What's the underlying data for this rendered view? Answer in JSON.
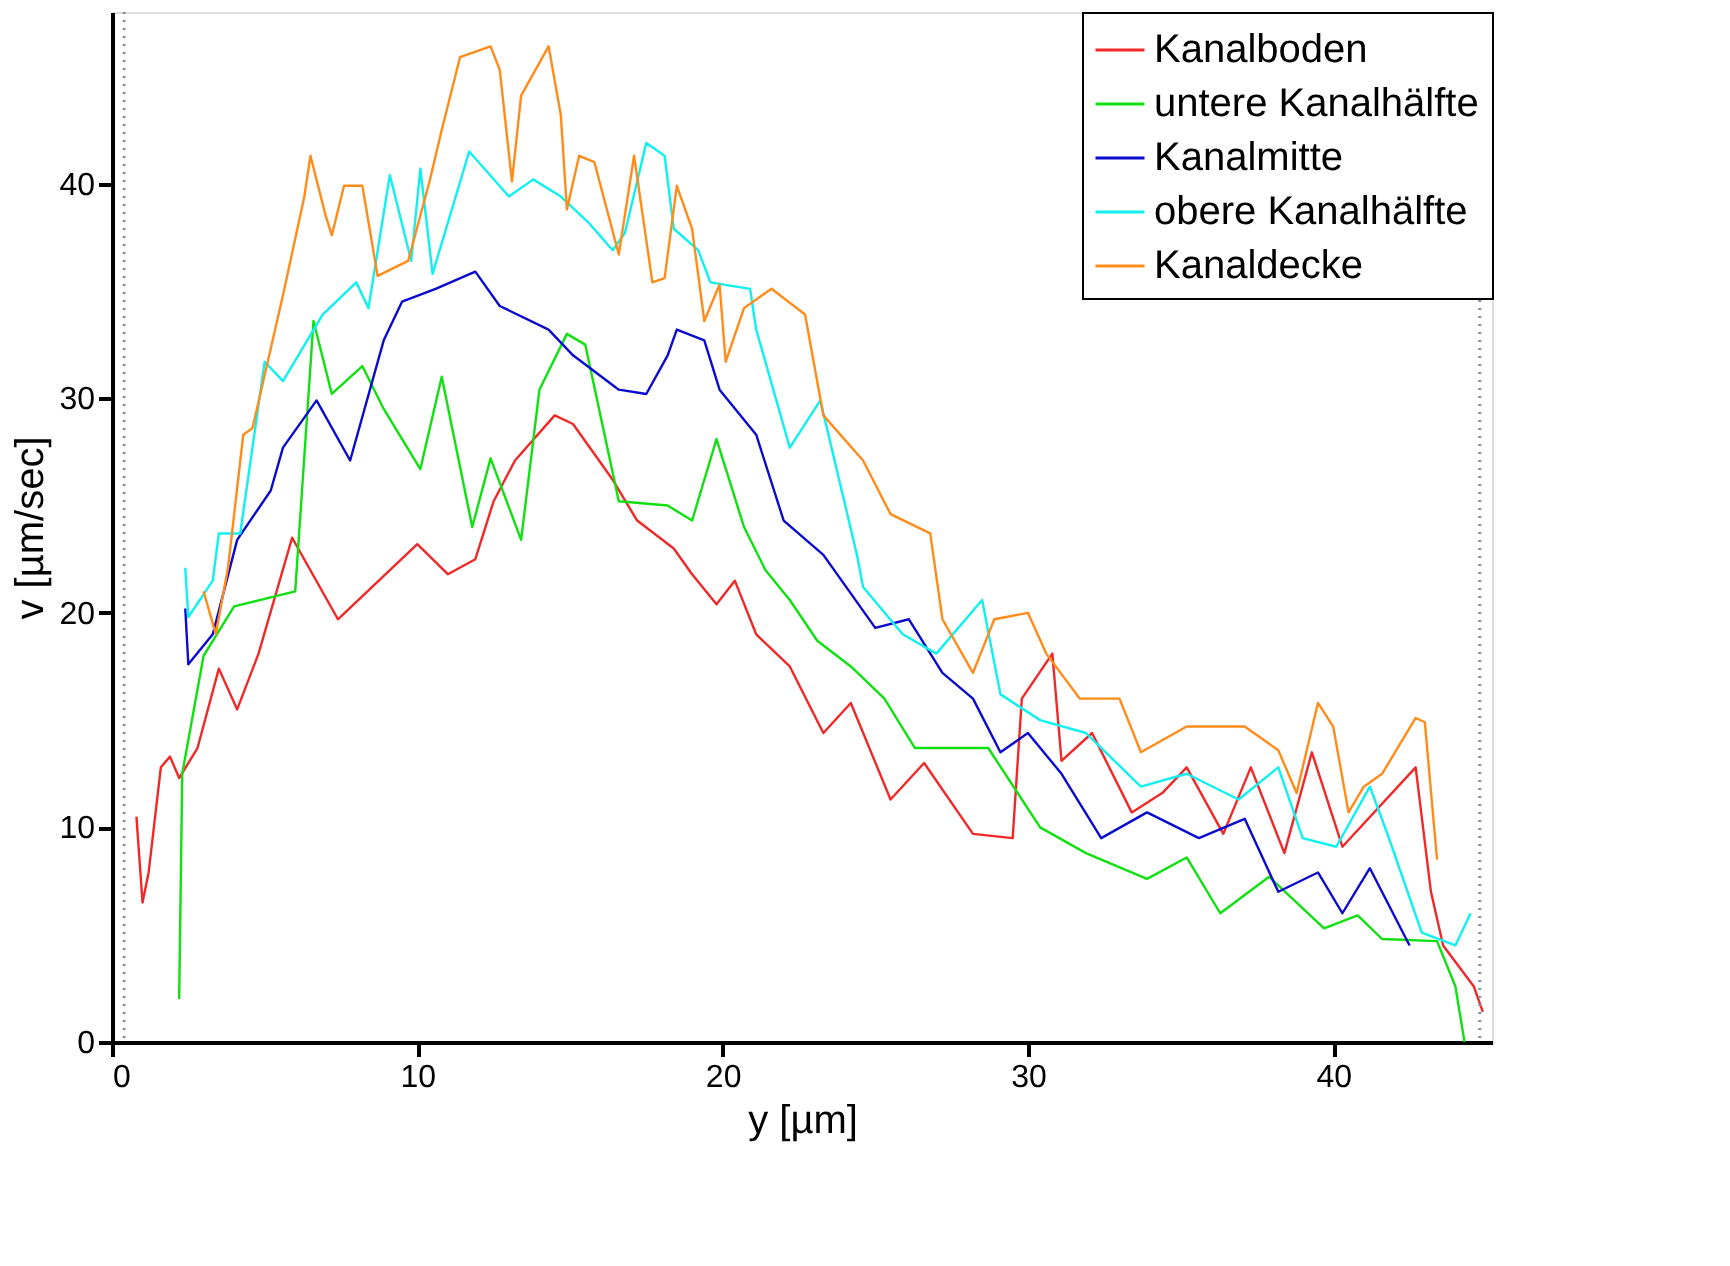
{
  "chart_data": {
    "type": "line",
    "xlabel": "y [µm]",
    "ylabel": "v [µm/sec]",
    "xlim": [
      0,
      45.2
    ],
    "ylim": [
      0,
      48
    ],
    "xticks": [
      0,
      10,
      20,
      30,
      40
    ],
    "yticks": [
      0,
      10,
      20,
      30,
      40
    ],
    "grid": false,
    "legend": "top right",
    "marker": "none",
    "line_style": "solid",
    "ref_lines": [
      {
        "axis": "x",
        "value": 0.4,
        "label": null,
        "color": "#8090a8",
        "line_style": "dotted"
      },
      {
        "axis": "x",
        "value": 44.8,
        "label": null,
        "color": "#8090a8",
        "line_style": "dotted"
      }
    ],
    "series": [
      {
        "name": "Kanalboden",
        "color": "#f02828",
        "x": [
          0.8,
          1,
          1.2,
          1.6,
          1.9,
          2.2,
          2.8,
          3.5,
          4.1,
          4.8,
          5.9,
          7.4,
          10,
          11,
          11.9,
          12.5,
          13.2,
          14.5,
          15.1,
          16.4,
          17.2,
          18.4,
          19,
          19.8,
          20.4,
          21.1,
          22.2,
          23.3,
          24.2,
          25.5,
          26.6,
          28.2,
          29.5,
          29.8,
          30.8,
          31.1,
          32.1,
          33.4,
          34.4,
          35.2,
          36.4,
          37.3,
          38.4,
          39.3,
          40.3,
          42.7,
          43.2,
          43.6,
          44.6,
          44.9
        ],
        "values": [
          10.5,
          6.5,
          7.9,
          12.8,
          13.3,
          12.3,
          13.7,
          17.4,
          15.5,
          18.1,
          23.5,
          19.7,
          23.2,
          21.8,
          22.5,
          25.2,
          27.1,
          29.2,
          28.8,
          26.2,
          24.3,
          23,
          21.8,
          20.4,
          21.5,
          19,
          17.5,
          14.4,
          15.8,
          11.3,
          13,
          9.7,
          9.5,
          16,
          18.1,
          13.1,
          14.4,
          10.7,
          11.6,
          12.8,
          9.7,
          12.8,
          8.8,
          13.5,
          9.1,
          12.8,
          7,
          4.5,
          2.6,
          1.4
        ]
      },
      {
        "name": "untere Kanalhälfte",
        "color": "#10e010",
        "x": [
          2.2,
          2.3,
          3,
          4,
          6,
          6.6,
          7.2,
          8.2,
          8.9,
          10.1,
          10.8,
          11.8,
          12.4,
          13.4,
          14,
          14.9,
          15.5,
          16.6,
          18.2,
          19,
          19.8,
          20.7,
          21.4,
          22.2,
          23.1,
          24.2,
          25.3,
          26.3,
          28.7,
          30.4,
          31.9,
          33.9,
          35.2,
          36.3,
          37.9,
          39.7,
          40.8,
          41.6,
          43.4,
          44,
          44.3
        ],
        "values": [
          2,
          12.5,
          18,
          20.3,
          21,
          33.6,
          30.2,
          31.5,
          29.5,
          26.7,
          31,
          24,
          27.2,
          23.4,
          30.4,
          33,
          32.5,
          25.2,
          25,
          24.3,
          28.1,
          24,
          22,
          20.6,
          18.7,
          17.5,
          16,
          13.7,
          13.7,
          10,
          8.8,
          7.6,
          8.6,
          6,
          7.7,
          5.3,
          5.9,
          4.8,
          4.7,
          2.6,
          0
        ]
      },
      {
        "name": "Kanalmitte",
        "color": "#0a0ad0",
        "x": [
          2.4,
          2.5,
          3.3,
          4.1,
          5.2,
          5.6,
          6.7,
          7.8,
          8.9,
          9.5,
          10.6,
          11.9,
          12.7,
          14.3,
          15.1,
          16.6,
          17.5,
          18.2,
          18.5,
          19.4,
          19.9,
          21.1,
          22,
          23.3,
          25,
          26.1,
          27.2,
          28.2,
          29.1,
          30,
          31.1,
          32.4,
          33.9,
          35.6,
          37.1,
          38.2,
          39.5,
          40.3,
          41.2,
          42.5
        ],
        "values": [
          20.2,
          17.6,
          19,
          23.4,
          25.7,
          27.7,
          29.9,
          27.1,
          32.7,
          34.5,
          35.1,
          35.9,
          34.3,
          33.2,
          32,
          30.4,
          30.2,
          32,
          33.2,
          32.7,
          30.4,
          28.3,
          24.3,
          22.7,
          19.3,
          19.7,
          17.2,
          16,
          13.5,
          14.4,
          12.5,
          9.5,
          10.7,
          9.5,
          10.4,
          7,
          7.9,
          6,
          8.1,
          4.5
        ]
      },
      {
        "name": "obere Kanalhälfte",
        "color": "#10f0f0",
        "x": [
          2.4,
          2.5,
          3.3,
          3.5,
          4.2,
          5,
          5.6,
          6.9,
          8,
          8.4,
          9.1,
          9.8,
          10.1,
          10.5,
          11.7,
          13,
          13.8,
          14.7,
          15.6,
          16.4,
          16.8,
          17.5,
          18.1,
          18.4,
          19.2,
          19.6,
          20.9,
          21.1,
          22.2,
          23.2,
          24.4,
          24.6,
          25.9,
          27,
          28.5,
          29.1,
          30.4,
          31.9,
          33.7,
          35.2,
          36.9,
          38.2,
          39,
          40.1,
          41.2,
          41.8,
          42.9,
          44,
          44.5
        ],
        "values": [
          22.1,
          19.8,
          21.5,
          23.7,
          23.7,
          31.7,
          30.8,
          33.9,
          35.4,
          34.2,
          40.4,
          36.4,
          40.7,
          35.8,
          41.5,
          39.4,
          40.2,
          39.4,
          38.2,
          36.9,
          37.7,
          41.9,
          41.3,
          37.9,
          36.9,
          35.4,
          35.1,
          33.2,
          27.7,
          29.9,
          22.7,
          21.2,
          19,
          18.1,
          20.6,
          16.2,
          15,
          14.4,
          11.9,
          12.5,
          11.3,
          12.8,
          9.5,
          9.1,
          11.9,
          9.6,
          5.1,
          4.5,
          6
        ]
      },
      {
        "name": "Kanaldecke",
        "color": "#ff8c1a",
        "x": [
          3,
          3.4,
          3.8,
          4.3,
          4.6,
          5.6,
          6.3,
          6.5,
          7,
          7.2,
          7.6,
          8.2,
          8.7,
          9.7,
          10.4,
          10.8,
          11.4,
          12.4,
          12.7,
          13.1,
          13.4,
          14.3,
          14.7,
          14.9,
          15.3,
          15.8,
          16.6,
          17.1,
          17.7,
          18.1,
          18.5,
          19,
          19.4,
          19.9,
          20.1,
          20.7,
          21.6,
          22.7,
          23.3,
          24.6,
          25.5,
          26.8,
          27.2,
          28.2,
          28.9,
          30,
          30.6,
          31.7,
          33,
          33.7,
          35.2,
          37.1,
          38.2,
          38.8,
          39.5,
          40,
          40.5,
          41,
          41.6,
          42.7,
          43,
          43.4
        ],
        "values": [
          21,
          19,
          22.1,
          28.3,
          28.6,
          34.8,
          39.4,
          41.3,
          38.5,
          37.6,
          39.9,
          39.9,
          35.7,
          36.4,
          40.1,
          42.5,
          45.9,
          46.4,
          45.3,
          40.1,
          44.1,
          46.4,
          43.2,
          38.8,
          41.3,
          41,
          36.7,
          41.3,
          35.4,
          35.6,
          39.9,
          37.9,
          33.6,
          35.3,
          31.7,
          34.2,
          35.1,
          33.9,
          29.2,
          27.1,
          24.6,
          23.7,
          19.7,
          17.2,
          19.7,
          20,
          18.1,
          16,
          16,
          13.5,
          14.7,
          14.7,
          13.6,
          11.6,
          15.8,
          14.7,
          10.7,
          11.9,
          12.5,
          15.1,
          14.9,
          8.5
        ]
      }
    ]
  }
}
